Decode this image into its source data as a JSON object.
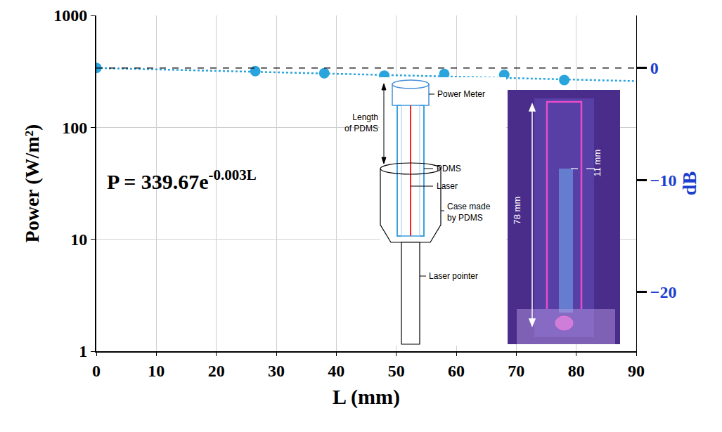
{
  "chart_data": {
    "type": "scatter",
    "x_label": "L (mm)",
    "y_label": "Power (W/m²)",
    "y2_label": "dB",
    "log": "y",
    "grid": true,
    "xlim": [
      0,
      90
    ],
    "xticks": [
      0,
      10,
      20,
      30,
      40,
      50,
      60,
      70,
      80,
      90
    ],
    "ylim": [
      1,
      1000
    ],
    "yticks": [
      1,
      10,
      100,
      1000
    ],
    "y2lim": [
      -25.3,
      4.7
    ],
    "y2ticks": [
      0,
      {
        "value": -10,
        "label": "−10"
      },
      {
        "value": -20,
        "label": "−20"
      }
    ],
    "series": [
      {
        "type": "scatter",
        "marker": "circle",
        "color": "#2aa4dc",
        "x": [
          0,
          26.5,
          38,
          48,
          58,
          68,
          78
        ],
        "values": [
          340,
          318,
          305,
          290,
          300,
          295,
          265
        ]
      },
      {
        "type": "line",
        "line_style": "dot",
        "color": "#2aa4dc",
        "x": [
          0,
          90
        ],
        "values": [
          339.67,
          259
        ]
      },
      {
        "type": "line",
        "line_style": "dash",
        "color": "#000000",
        "axis": "y2",
        "x": [
          0,
          90
        ],
        "values": [
          0,
          0
        ]
      }
    ],
    "annotations": [
      {
        "text": "P = 339.67e",
        "superscript": "-0.003L"
      }
    ],
    "inset": {
      "diagram_labels": [
        {
          "lines": [
            "Power Meter"
          ]
        },
        {
          "lines": [
            "Length",
            "of PDMS"
          ]
        },
        {
          "lines": [
            "PDMS"
          ]
        },
        {
          "lines": [
            "Laser"
          ]
        },
        {
          "lines": [
            "Case made",
            "by PDMS"
          ]
        },
        {
          "lines": [
            "Laser pointer"
          ]
        }
      ],
      "photo_labels": [
        "78 mm",
        "11 mm"
      ]
    }
  }
}
